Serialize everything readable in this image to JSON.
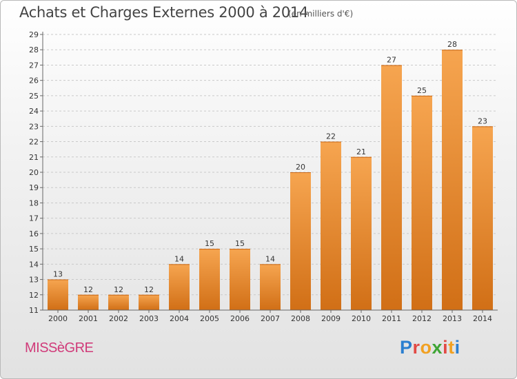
{
  "header": {
    "title": "Achats et Charges Externes 2000 à 2014",
    "subtitle": "(en milliers d'€)"
  },
  "footer": {
    "place": "MISSèGRE",
    "logo_letters": [
      {
        "ch": "P",
        "color": "#2b7fd0"
      },
      {
        "ch": "r",
        "color": "#e24a45"
      },
      {
        "ch": "o",
        "color": "#f1a122"
      },
      {
        "ch": "x",
        "color": "#3fa535"
      },
      {
        "ch": "i",
        "color": "#e24a45"
      },
      {
        "ch": "t",
        "color": "#f1a122"
      },
      {
        "ch": "i",
        "color": "#2b7fd0"
      }
    ]
  },
  "colors": {
    "bar_light": "#f6a550",
    "bar_dark": "#d16f16",
    "grid": "#c9c9c9",
    "axis": "#666666"
  },
  "chart_data": {
    "type": "bar",
    "title": "Achats et Charges Externes 2000 à 2014",
    "subtitle": "(en milliers d'€)",
    "categories": [
      "2000",
      "2001",
      "2002",
      "2003",
      "2004",
      "2005",
      "2006",
      "2007",
      "2008",
      "2009",
      "2010",
      "2011",
      "2012",
      "2013",
      "2014"
    ],
    "values": [
      13,
      12,
      12,
      12,
      14,
      15,
      15,
      14,
      20,
      22,
      21,
      27,
      25,
      28,
      23
    ],
    "ylim": [
      11,
      29
    ],
    "yticks": [
      11,
      12,
      13,
      14,
      15,
      16,
      17,
      18,
      19,
      20,
      21,
      22,
      23,
      24,
      25,
      26,
      27,
      28,
      29
    ],
    "grid": true,
    "grid_style": "dashed horizontal",
    "data_labels": true
  }
}
